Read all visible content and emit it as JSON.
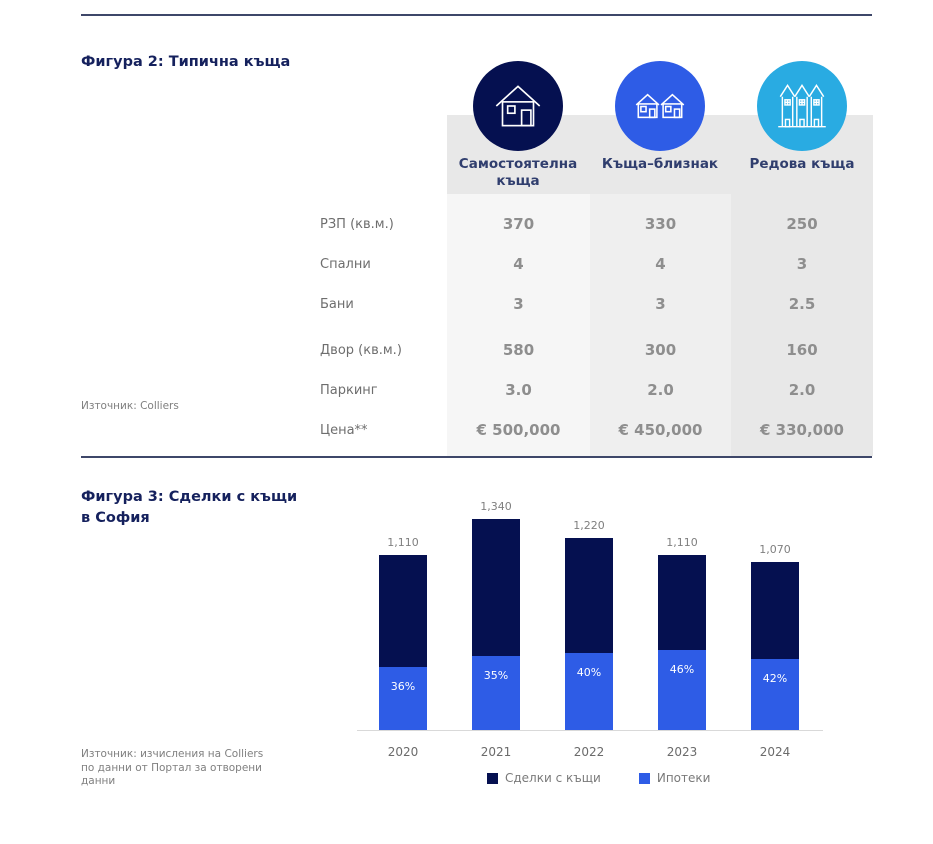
{
  "colors": {
    "navy": "#051050",
    "blue": "#2e5ce6",
    "cyan": "#29abe2",
    "title_navy": "#15215d",
    "divider": "#3e4769",
    "header_band_bg": "#e8e8e8"
  },
  "figure2": {
    "title": "Фигура 2: Типична къща",
    "source": "Източник: Colliers",
    "columns": [
      {
        "label": "Самостоятелна къща",
        "icon": "detached-house-icon",
        "circle_color": "#051050"
      },
      {
        "label": "Къща–близнак",
        "icon": "semi-detached-house-icon",
        "circle_color": "#2e5ce6"
      },
      {
        "label": "Редова къща",
        "icon": "row-house-icon",
        "circle_color": "#29abe2"
      }
    ],
    "column_bg": [
      "#f6f6f6",
      "#efefef",
      "#e8e8e8"
    ],
    "rows": [
      {
        "label": "РЗП (кв.м.)",
        "values": [
          "370",
          "330",
          "250"
        ]
      },
      {
        "label": "Спални",
        "values": [
          "4",
          "4",
          "3"
        ]
      },
      {
        "label": "Бани",
        "values": [
          "3",
          "3",
          "2.5"
        ]
      },
      {
        "label": "Двор (кв.м.)",
        "values": [
          "580",
          "300",
          "160"
        ]
      },
      {
        "label": "Паркинг",
        "values": [
          "3.0",
          "2.0",
          "2.0"
        ]
      },
      {
        "label": "Цена**",
        "values": [
          "€ 500,000",
          "€ 450,000",
          "€ 330,000"
        ]
      }
    ]
  },
  "figure3": {
    "title_lines": [
      "Фигура 3: Сделки с къщи",
      "в София"
    ],
    "source_lines": [
      "Източник: изчисления на Colliers",
      "по данни от Портал за отворени",
      "данни"
    ]
  },
  "chart_data": [
    {
      "type": "table",
      "title": "Фигура 2: Типична къща",
      "columns": [
        "Самостоятелна къща",
        "Къща–близнак",
        "Редова къща"
      ],
      "row_headers": [
        "РЗП (кв.м.)",
        "Спални",
        "Бани",
        "Двор (кв.м.)",
        "Паркинг",
        "Цена**"
      ],
      "rows": [
        [
          "370",
          "330",
          "250"
        ],
        [
          "4",
          "4",
          "3"
        ],
        [
          "3",
          "3",
          "2.5"
        ],
        [
          "580",
          "300",
          "160"
        ],
        [
          "3.0",
          "2.0",
          "2.0"
        ],
        [
          "€ 500,000",
          "€ 450,000",
          "€ 330,000"
        ]
      ],
      "source": "Източник: Colliers"
    },
    {
      "type": "bar",
      "stacked": true,
      "title": "Фигура 3: Сделки с къщи в София",
      "categories": [
        "2020",
        "2021",
        "2022",
        "2023",
        "2024"
      ],
      "series": [
        {
          "name": "Сделки с къщи",
          "color": "#051050",
          "values": [
            1110,
            1340,
            1220,
            1110,
            1070
          ],
          "labels": [
            "1,110",
            "1,340",
            "1,220",
            "1,110",
            "1,070"
          ]
        },
        {
          "name": "Ипотеки",
          "color": "#2e5ce6",
          "percent_of_total": [
            36,
            35,
            40,
            46,
            42
          ],
          "labels": [
            "36%",
            "35%",
            "40%",
            "46%",
            "42%"
          ]
        }
      ],
      "ylim": [
        0,
        1500
      ],
      "grid": false,
      "legend_position": "bottom",
      "xlabel": "",
      "ylabel": ""
    }
  ]
}
